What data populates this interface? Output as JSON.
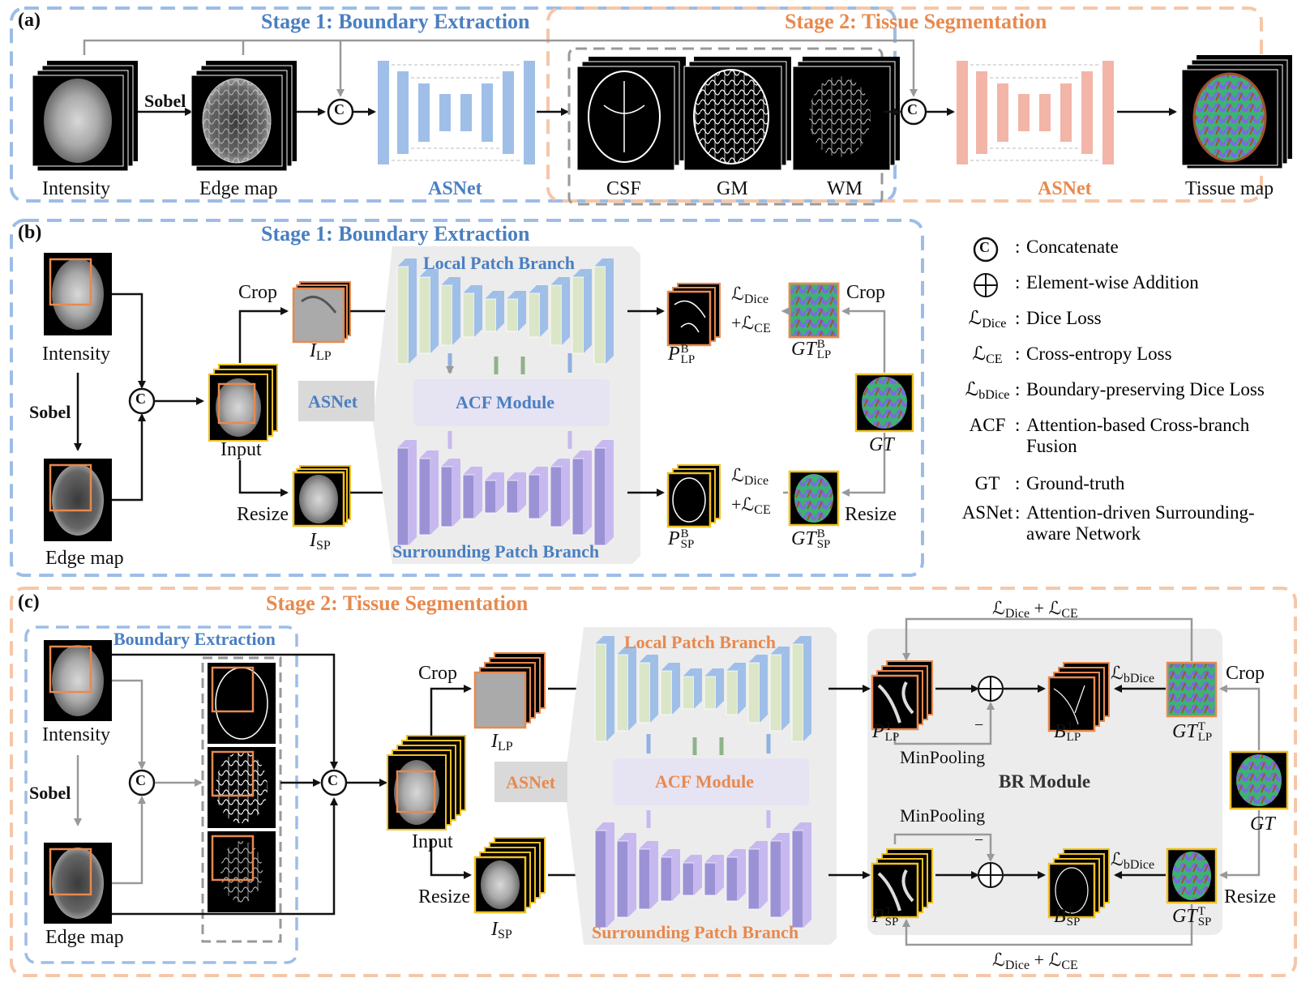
{
  "labels": {
    "panel_a": "(a)",
    "panel_b": "(b)",
    "panel_c": "(c)",
    "stage1_title": "Stage 1: Boundary Extraction",
    "stage2_title": "Stage 2: Tissue Segmentation",
    "boundary_extraction": "Boundary Extraction",
    "intensity": "Intensity",
    "edge_map": "Edge map",
    "sobel": "Sobel",
    "asnet": "ASNet",
    "csf": "CSF",
    "gm": "GM",
    "wm": "WM",
    "tissue_map": "Tissue map",
    "input": "Input",
    "crop": "Crop",
    "resize": "Resize",
    "local_patch_branch": "Local Patch Branch",
    "surrounding_patch_branch": "Surrounding Patch Branch",
    "acf_module": "ACF Module",
    "br_module": "BR Module",
    "minpooling": "MinPooling",
    "minus": "−",
    "concat_symbol": "C",
    "gt": "GT",
    "I": "I",
    "P": "P",
    "B": "B",
    "sub_lp": "LP",
    "sub_sp": "SP",
    "sup_b": "B",
    "sup_t": "T",
    "loss_dice": "ℒ",
    "loss_sub_dice": "Dice",
    "loss_sub_ce": "CE",
    "loss_sub_bdice": "bDice",
    "plus": "+"
  },
  "legend": [
    {
      "symbol": "concat",
      "sep": ":",
      "text": "Concatenate"
    },
    {
      "symbol": "add",
      "sep": ":",
      "text": "Element-wise Addition"
    },
    {
      "symbol": "ℒ",
      "sub": "Dice",
      "sep": ":",
      "text": "Dice Loss"
    },
    {
      "symbol": "ℒ",
      "sub": "CE",
      "sep": ":",
      "text": "Cross-entropy Loss"
    },
    {
      "symbol": "ℒ",
      "sub": "bDice",
      "sep": ":",
      "text": "Boundary-preserving Dice Loss"
    },
    {
      "symbol": "ACF",
      "sep": ":",
      "text": "Attention-based Cross-branch",
      "text2": "Fusion"
    },
    {
      "symbol": "GT",
      "sep": ":",
      "text": "Ground-truth"
    },
    {
      "symbol": "ASNet",
      "sep": ":",
      "text": "Attention-driven Surrounding-",
      "text2": "aware Network"
    }
  ],
  "colors": {
    "stage1_blue": "#4a7fc1",
    "stage2_orange": "#e8894e",
    "dash_blue": "#9dbde6",
    "dash_orange": "#f5c7a8",
    "asnet_blue": "#9fbfe8",
    "asnet_pink": "#f2b5a8",
    "lp_green": "#dbe6c9",
    "sp_purple": "#9b92d6",
    "acf_bg": "#e6e3f3",
    "gray_panel": "#ececec",
    "arrow_gray": "#999999",
    "frame_orange": "#e8894e",
    "frame_yellow": "#f0c020"
  }
}
